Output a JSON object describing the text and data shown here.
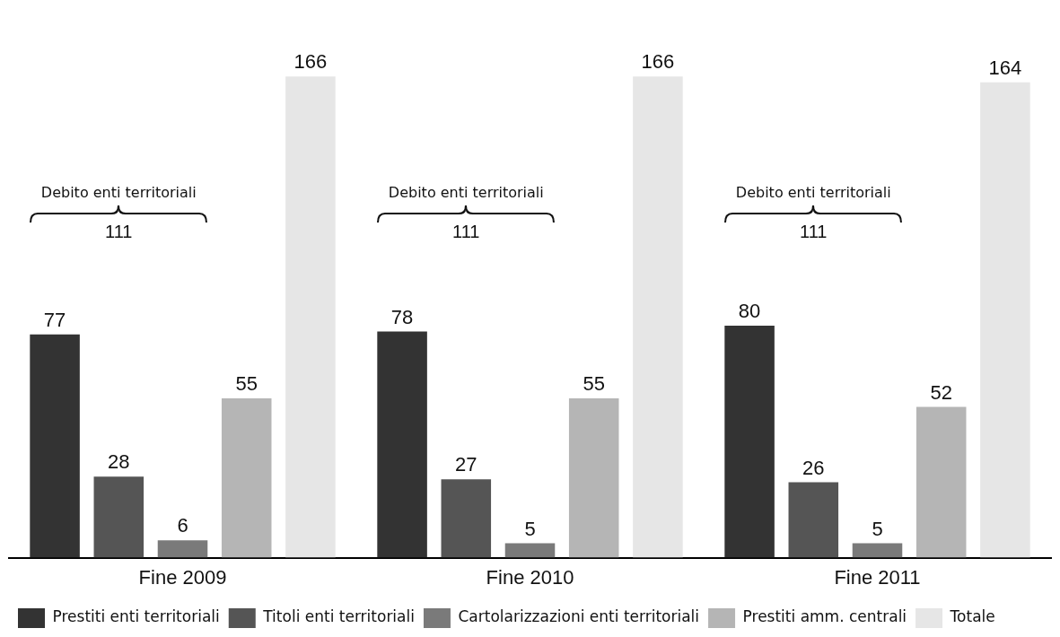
{
  "chart_data": {
    "type": "bar",
    "categories": [
      "Fine 2009",
      "Fine 2010",
      "Fine 2011"
    ],
    "series": [
      {
        "name": "Prestiti enti territoriali",
        "color": "#333333",
        "values": [
          77,
          78,
          80
        ]
      },
      {
        "name": "Titoli enti territoriali",
        "color": "#555555",
        "values": [
          28,
          27,
          26
        ]
      },
      {
        "name": "Cartolarizzazioni enti territoriali",
        "color": "#7a7a7a",
        "values": [
          6,
          5,
          5
        ]
      },
      {
        "name": "Prestiti amm. centrali",
        "color": "#b5b5b5",
        "values": [
          55,
          55,
          52
        ]
      },
      {
        "name": "Totale",
        "color": "#e6e6e6",
        "values": [
          166,
          166,
          164
        ]
      }
    ],
    "annotations": [
      "Debito enti territoriali",
      "111",
      "Debito enti territoriali",
      "111",
      "Debito enti territoriali",
      "111"
    ],
    "data_labels": true,
    "grid": false,
    "legend": "bottom"
  }
}
